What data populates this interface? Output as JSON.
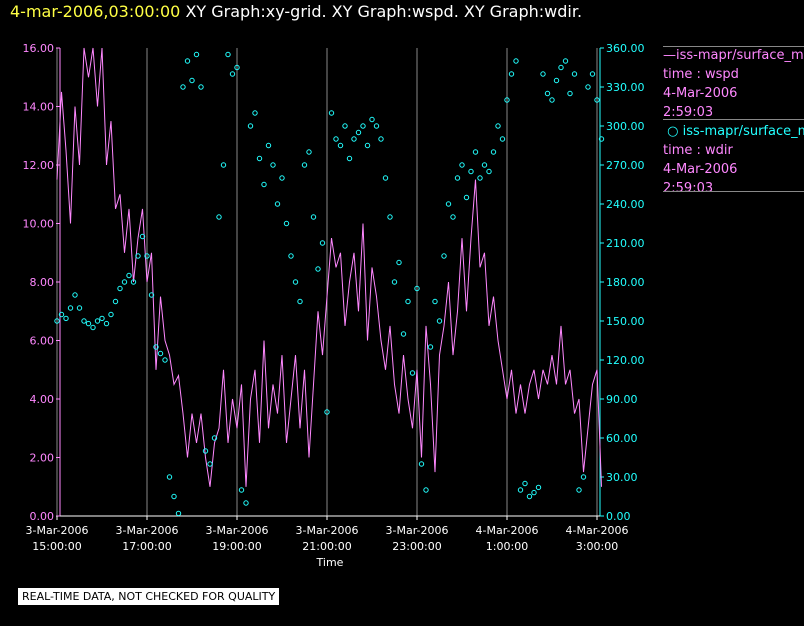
{
  "header": {
    "timestamp": "4-mar-2006,03:00:00",
    "titles": "XY Graph:xy-grid.  XY Graph:wspd.  XY Graph:wdir."
  },
  "legend": {
    "series1_name": "iss-mapr/surface_m",
    "series1_time": "time : wspd",
    "series1_date": "4-Mar-2006",
    "series1_clock": "2:59:03",
    "series2_name": "iss-mapr/surface_m",
    "series2_time": "time : wdir",
    "series2_date": "4-Mar-2006",
    "series2_clock": "2:59:03"
  },
  "disclaimer": "REAL-TIME DATA, NOT CHECKED FOR QUALITY",
  "colors": {
    "wspd": "#ff88ff",
    "wdir": "#22ffff",
    "timestamp": "#ffff44",
    "grid": "#888888"
  },
  "chart_data": {
    "type": "line",
    "xlabel": "Time",
    "left_ylim": [
      0,
      16
    ],
    "right_ylim": [
      0,
      360
    ],
    "left_ticks": [
      "0.00",
      "2.00",
      "4.00",
      "6.00",
      "8.00",
      "10.00",
      "12.00",
      "14.00",
      "16.00"
    ],
    "right_ticks": [
      "0.00",
      "30.00",
      "60.00",
      "90.00",
      "120.00",
      "150.00",
      "180.00",
      "210.00",
      "240.00",
      "270.00",
      "300.00",
      "330.00",
      "360.00"
    ],
    "x_ticks": [
      {
        "line1": "3-Mar-2006",
        "line2": "15:00:00",
        "hour": 15
      },
      {
        "line1": "3-Mar-2006",
        "line2": "17:00:00",
        "hour": 17
      },
      {
        "line1": "3-Mar-2006",
        "line2": "19:00:00",
        "hour": 19
      },
      {
        "line1": "3-Mar-2006",
        "line2": "21:00:00",
        "hour": 21
      },
      {
        "line1": "3-Mar-2006",
        "line2": "23:00:00",
        "hour": 23
      },
      {
        "line1": "4-Mar-2006",
        "line2": "1:00:00",
        "hour": 25
      },
      {
        "line1": "4-Mar-2006",
        "line2": "3:00:00",
        "hour": 27
      }
    ],
    "x_range_hours": [
      15,
      27
    ],
    "series": [
      {
        "name": "wspd",
        "axis": "left",
        "style": "line",
        "points": [
          [
            15.0,
            11.5
          ],
          [
            15.1,
            14.5
          ],
          [
            15.2,
            12.5
          ],
          [
            15.3,
            10.0
          ],
          [
            15.4,
            14.0
          ],
          [
            15.5,
            12.0
          ],
          [
            15.6,
            16.0
          ],
          [
            15.7,
            15.0
          ],
          [
            15.8,
            16.0
          ],
          [
            15.9,
            14.0
          ],
          [
            16.0,
            16.0
          ],
          [
            16.1,
            12.0
          ],
          [
            16.2,
            13.5
          ],
          [
            16.3,
            10.5
          ],
          [
            16.4,
            11.0
          ],
          [
            16.5,
            9.0
          ],
          [
            16.6,
            10.5
          ],
          [
            16.7,
            8.0
          ],
          [
            16.8,
            9.5
          ],
          [
            16.9,
            10.5
          ],
          [
            17.0,
            8.0
          ],
          [
            17.1,
            9.0
          ],
          [
            17.2,
            5.0
          ],
          [
            17.3,
            7.5
          ],
          [
            17.4,
            6.0
          ],
          [
            17.5,
            5.5
          ],
          [
            17.6,
            4.5
          ],
          [
            17.7,
            4.8
          ],
          [
            17.8,
            3.5
          ],
          [
            17.9,
            2.0
          ],
          [
            18.0,
            3.5
          ],
          [
            18.1,
            2.5
          ],
          [
            18.2,
            3.5
          ],
          [
            18.3,
            2.0
          ],
          [
            18.4,
            1.0
          ],
          [
            18.5,
            2.5
          ],
          [
            18.6,
            3.0
          ],
          [
            18.7,
            5.0
          ],
          [
            18.8,
            2.5
          ],
          [
            18.9,
            4.0
          ],
          [
            19.0,
            3.0
          ],
          [
            19.1,
            4.5
          ],
          [
            19.2,
            1.0
          ],
          [
            19.3,
            4.0
          ],
          [
            19.4,
            5.0
          ],
          [
            19.5,
            2.5
          ],
          [
            19.6,
            6.0
          ],
          [
            19.7,
            3.0
          ],
          [
            19.8,
            4.5
          ],
          [
            19.9,
            3.5
          ],
          [
            20.0,
            5.5
          ],
          [
            20.1,
            2.5
          ],
          [
            20.2,
            4.0
          ],
          [
            20.3,
            5.5
          ],
          [
            20.4,
            3.0
          ],
          [
            20.5,
            5.0
          ],
          [
            20.6,
            2.0
          ],
          [
            20.7,
            4.5
          ],
          [
            20.8,
            7.0
          ],
          [
            20.9,
            5.5
          ],
          [
            21.0,
            7.5
          ],
          [
            21.1,
            9.5
          ],
          [
            21.2,
            8.5
          ],
          [
            21.3,
            9.0
          ],
          [
            21.4,
            6.5
          ],
          [
            21.5,
            8.0
          ],
          [
            21.6,
            9.0
          ],
          [
            21.7,
            7.0
          ],
          [
            21.8,
            10.0
          ],
          [
            21.9,
            6.0
          ],
          [
            22.0,
            8.5
          ],
          [
            22.1,
            7.5
          ],
          [
            22.2,
            6.0
          ],
          [
            22.3,
            5.0
          ],
          [
            22.4,
            6.5
          ],
          [
            22.5,
            4.5
          ],
          [
            22.6,
            3.5
          ],
          [
            22.7,
            5.5
          ],
          [
            22.8,
            4.0
          ],
          [
            22.9,
            3.0
          ],
          [
            23.0,
            5.0
          ],
          [
            23.1,
            2.0
          ],
          [
            23.2,
            6.5
          ],
          [
            23.3,
            4.5
          ],
          [
            23.4,
            1.5
          ],
          [
            23.5,
            5.5
          ],
          [
            23.6,
            6.5
          ],
          [
            23.7,
            8.0
          ],
          [
            23.8,
            5.5
          ],
          [
            23.9,
            7.0
          ],
          [
            24.0,
            9.5
          ],
          [
            24.1,
            7.0
          ],
          [
            24.2,
            9.5
          ],
          [
            24.3,
            11.5
          ],
          [
            24.4,
            8.5
          ],
          [
            24.5,
            9.0
          ],
          [
            24.6,
            6.5
          ],
          [
            24.7,
            7.5
          ],
          [
            24.8,
            6.0
          ],
          [
            24.9,
            5.0
          ],
          [
            25.0,
            4.0
          ],
          [
            25.1,
            5.0
          ],
          [
            25.2,
            3.5
          ],
          [
            25.3,
            4.5
          ],
          [
            25.4,
            3.5
          ],
          [
            25.5,
            4.5
          ],
          [
            25.6,
            5.0
          ],
          [
            25.7,
            4.0
          ],
          [
            25.8,
            5.0
          ],
          [
            25.9,
            4.5
          ],
          [
            26.0,
            5.5
          ],
          [
            26.1,
            4.5
          ],
          [
            26.2,
            6.5
          ],
          [
            26.3,
            4.5
          ],
          [
            26.4,
            5.0
          ],
          [
            26.5,
            3.5
          ],
          [
            26.6,
            4.0
          ],
          [
            26.7,
            1.5
          ],
          [
            26.8,
            3.0
          ],
          [
            26.9,
            4.5
          ],
          [
            27.0,
            5.0
          ],
          [
            27.05,
            3.0
          ],
          [
            27.1,
            1.0
          ]
        ]
      },
      {
        "name": "wdir",
        "axis": "right",
        "style": "markers",
        "points": [
          [
            15.0,
            150
          ],
          [
            15.1,
            155
          ],
          [
            15.2,
            152
          ],
          [
            15.3,
            160
          ],
          [
            15.4,
            170
          ],
          [
            15.5,
            160
          ],
          [
            15.6,
            150
          ],
          [
            15.7,
            148
          ],
          [
            15.8,
            145
          ],
          [
            15.9,
            150
          ],
          [
            16.0,
            152
          ],
          [
            16.1,
            148
          ],
          [
            16.2,
            155
          ],
          [
            16.3,
            165
          ],
          [
            16.4,
            175
          ],
          [
            16.5,
            180
          ],
          [
            16.6,
            185
          ],
          [
            16.7,
            180
          ],
          [
            16.8,
            200
          ],
          [
            16.9,
            215
          ],
          [
            17.0,
            200
          ],
          [
            17.1,
            170
          ],
          [
            17.2,
            130
          ],
          [
            17.3,
            125
          ],
          [
            17.4,
            120
          ],
          [
            17.5,
            30
          ],
          [
            17.6,
            15
          ],
          [
            17.7,
            2
          ],
          [
            17.8,
            330
          ],
          [
            17.9,
            350
          ],
          [
            18.0,
            335
          ],
          [
            18.1,
            355
          ],
          [
            18.2,
            330
          ],
          [
            18.3,
            50
          ],
          [
            18.4,
            40
          ],
          [
            18.5,
            60
          ],
          [
            18.6,
            230
          ],
          [
            18.7,
            270
          ],
          [
            18.8,
            355
          ],
          [
            18.9,
            340
          ],
          [
            19.0,
            345
          ],
          [
            19.1,
            20
          ],
          [
            19.2,
            10
          ],
          [
            19.3,
            300
          ],
          [
            19.4,
            310
          ],
          [
            19.5,
            275
          ],
          [
            19.6,
            255
          ],
          [
            19.7,
            285
          ],
          [
            19.8,
            270
          ],
          [
            19.9,
            240
          ],
          [
            20.0,
            260
          ],
          [
            20.1,
            225
          ],
          [
            20.2,
            200
          ],
          [
            20.3,
            180
          ],
          [
            20.4,
            165
          ],
          [
            20.5,
            270
          ],
          [
            20.6,
            280
          ],
          [
            20.7,
            230
          ],
          [
            20.8,
            190
          ],
          [
            20.9,
            210
          ],
          [
            21.0,
            80
          ],
          [
            21.1,
            310
          ],
          [
            21.2,
            290
          ],
          [
            21.3,
            285
          ],
          [
            21.4,
            300
          ],
          [
            21.5,
            275
          ],
          [
            21.6,
            290
          ],
          [
            21.7,
            295
          ],
          [
            21.8,
            300
          ],
          [
            21.9,
            285
          ],
          [
            22.0,
            305
          ],
          [
            22.1,
            300
          ],
          [
            22.2,
            290
          ],
          [
            22.3,
            260
          ],
          [
            22.4,
            230
          ],
          [
            22.5,
            180
          ],
          [
            22.6,
            195
          ],
          [
            22.7,
            140
          ],
          [
            22.8,
            165
          ],
          [
            22.9,
            110
          ],
          [
            23.0,
            175
          ],
          [
            23.1,
            40
          ],
          [
            23.2,
            20
          ],
          [
            23.3,
            130
          ],
          [
            23.4,
            165
          ],
          [
            23.5,
            150
          ],
          [
            23.6,
            200
          ],
          [
            23.7,
            240
          ],
          [
            23.8,
            230
          ],
          [
            23.9,
            260
          ],
          [
            24.0,
            270
          ],
          [
            24.1,
            245
          ],
          [
            24.2,
            265
          ],
          [
            24.3,
            280
          ],
          [
            24.4,
            260
          ],
          [
            24.5,
            270
          ],
          [
            24.6,
            265
          ],
          [
            24.7,
            280
          ],
          [
            24.8,
            300
          ],
          [
            24.9,
            290
          ],
          [
            25.0,
            320
          ],
          [
            25.1,
            340
          ],
          [
            25.2,
            350
          ],
          [
            25.3,
            20
          ],
          [
            25.4,
            25
          ],
          [
            25.5,
            15
          ],
          [
            25.6,
            18
          ],
          [
            25.7,
            22
          ],
          [
            25.8,
            340
          ],
          [
            25.9,
            325
          ],
          [
            26.0,
            320
          ],
          [
            26.1,
            335
          ],
          [
            26.2,
            345
          ],
          [
            26.3,
            350
          ],
          [
            26.4,
            325
          ],
          [
            26.5,
            340
          ],
          [
            26.6,
            20
          ],
          [
            26.7,
            30
          ],
          [
            26.8,
            330
          ],
          [
            26.9,
            340
          ],
          [
            27.0,
            320
          ],
          [
            27.1,
            290
          ]
        ]
      }
    ],
    "grid_vertical": true
  }
}
